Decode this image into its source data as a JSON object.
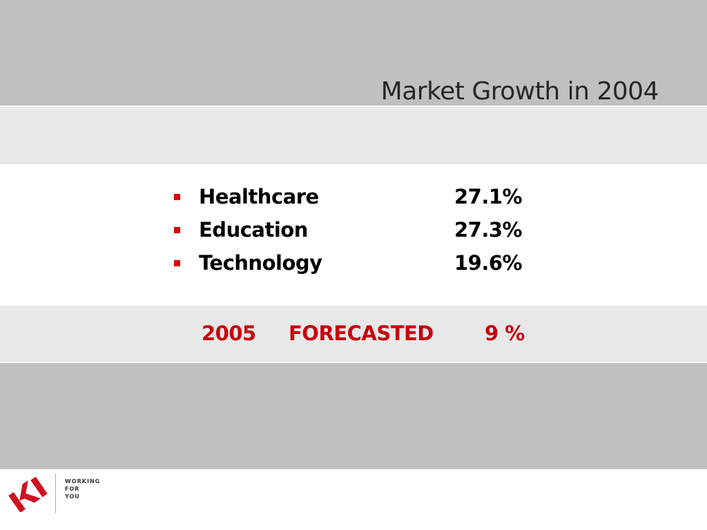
{
  "slide": {
    "title": "Market Growth in 2004"
  },
  "bullets": {
    "items": [
      {
        "label": "Healthcare",
        "value": "27.1%"
      },
      {
        "label": "Education",
        "value": "27.3%"
      },
      {
        "label": "Technology",
        "value": "19.6%"
      }
    ],
    "bullet_color": "#e00000"
  },
  "forecast": {
    "year": "2005",
    "label": "FORECASTED",
    "value": "9 %",
    "color": "#c8000a"
  },
  "footer": {
    "logo_text": "KI",
    "logo_color": "#d01020",
    "tagline": [
      "WORKING",
      "FOR",
      "YOU"
    ]
  },
  "colors": {
    "band_dark": "#c0c0c0",
    "band_light": "#e8e8e8"
  }
}
